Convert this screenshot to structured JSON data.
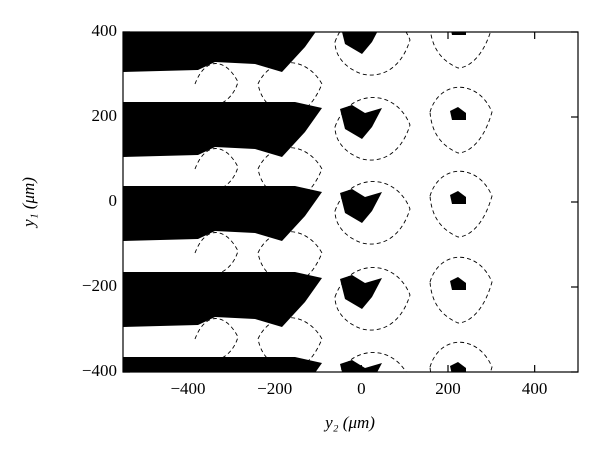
{
  "chart_data": {
    "type": "region",
    "xlabel": "y₂ (μm)",
    "ylabel": "y₁ (μm)",
    "xlim": [
      -550,
      500
    ],
    "ylim": [
      -400,
      400
    ],
    "xticks": [
      {
        "value": -400,
        "label": "−400"
      },
      {
        "value": -200,
        "label": "−200"
      },
      0,
      200,
      400
    ],
    "yticks": [
      {
        "value": -400,
        "label": "−400"
      },
      {
        "value": -200,
        "label": "−200"
      },
      0,
      200,
      400
    ],
    "color": "#000000"
  }
}
